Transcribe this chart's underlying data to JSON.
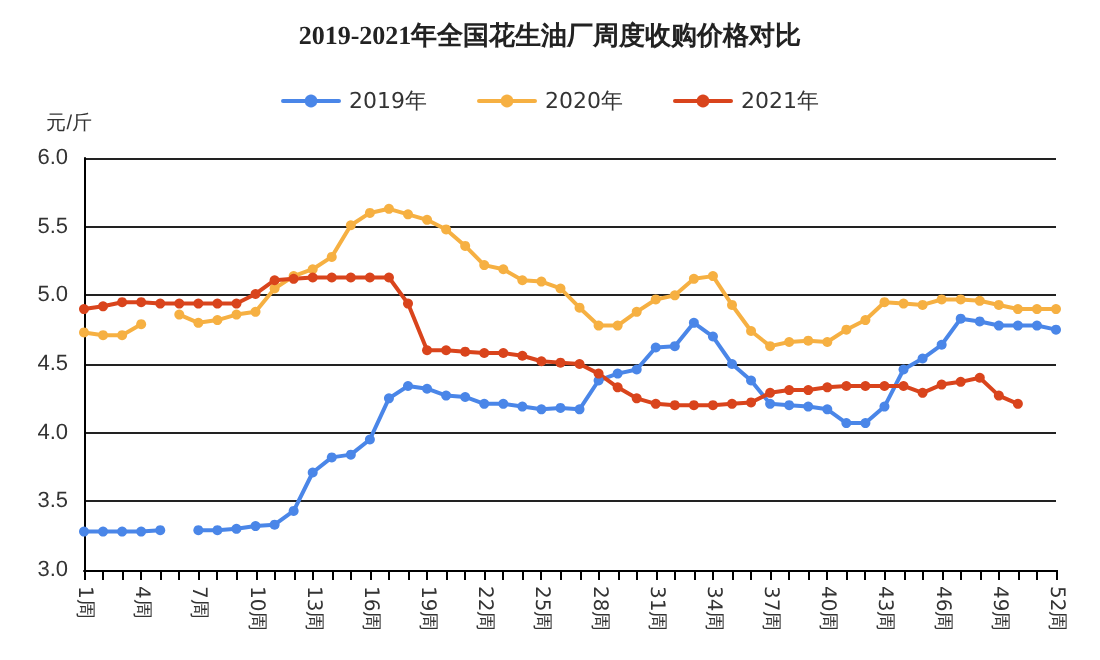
{
  "chart_data": {
    "type": "line",
    "title": "2019-2021年全国花生油厂周度收购价格对比",
    "ylabel": "元/斤",
    "categories": [
      "1周",
      null,
      null,
      "4周",
      null,
      null,
      "7周",
      null,
      null,
      "10周",
      null,
      null,
      "13周",
      null,
      null,
      "16周",
      null,
      null,
      "19周",
      null,
      null,
      "22周",
      null,
      null,
      "25周",
      null,
      null,
      "28周",
      null,
      null,
      "31周",
      null,
      null,
      "34周",
      null,
      null,
      "37周",
      null,
      null,
      "40周",
      null,
      null,
      "43周",
      null,
      null,
      "46周",
      null,
      null,
      "49周",
      null,
      null,
      "52周"
    ],
    "series": [
      {
        "name": "2019年",
        "color": "#4a86e8",
        "values": [
          3.28,
          3.28,
          3.28,
          3.28,
          3.29,
          null,
          3.29,
          3.29,
          3.3,
          3.32,
          3.33,
          3.43,
          3.71,
          3.82,
          3.84,
          3.95,
          4.25,
          4.34,
          4.32,
          4.27,
          4.26,
          4.21,
          4.21,
          4.19,
          4.17,
          4.18,
          4.17,
          4.38,
          4.43,
          4.46,
          4.62,
          4.63,
          4.8,
          4.7,
          4.5,
          4.38,
          4.21,
          4.2,
          4.19,
          4.17,
          4.07,
          4.07,
          4.19,
          4.46,
          4.54,
          4.64,
          4.83,
          4.81,
          4.78,
          4.78,
          4.78,
          4.75
        ]
      },
      {
        "name": "2020年",
        "color": "#f6b042",
        "values": [
          4.73,
          4.71,
          4.71,
          4.79,
          null,
          4.86,
          4.8,
          4.82,
          4.86,
          4.88,
          5.05,
          5.14,
          5.19,
          5.28,
          5.51,
          5.6,
          5.63,
          5.59,
          5.55,
          5.48,
          5.36,
          5.22,
          5.19,
          5.11,
          5.1,
          5.05,
          4.91,
          4.78,
          4.78,
          4.88,
          4.97,
          5.0,
          5.12,
          5.14,
          4.93,
          4.74,
          4.63,
          4.66,
          4.67,
          4.66,
          4.75,
          4.82,
          4.95,
          4.94,
          4.93,
          4.97,
          4.97,
          4.96,
          4.93,
          4.9,
          4.9,
          4.9
        ]
      },
      {
        "name": "2021年",
        "color": "#d9441c",
        "values": [
          4.9,
          4.92,
          4.95,
          4.95,
          4.94,
          4.94,
          4.94,
          4.94,
          4.94,
          5.01,
          5.11,
          5.12,
          5.13,
          5.13,
          5.13,
          5.13,
          5.13,
          4.94,
          4.6,
          4.6,
          4.59,
          4.58,
          4.58,
          4.56,
          4.52,
          4.51,
          4.5,
          4.43,
          4.33,
          4.25,
          4.21,
          4.2,
          4.2,
          4.2,
          4.21,
          4.22,
          4.29,
          4.31,
          4.31,
          4.33,
          4.34,
          4.34,
          4.34,
          4.34,
          4.29,
          4.35,
          4.37,
          4.4,
          4.27,
          4.21,
          null,
          null
        ]
      }
    ],
    "ylim": [
      3.0,
      6.0
    ],
    "yticks": [
      {
        "value": 3,
        "label": "3.0"
      },
      3.5,
      {
        "value": 4,
        "label": "4.0"
      },
      4.5,
      {
        "value": 5,
        "label": "5.0"
      },
      5.5,
      {
        "value": 6,
        "label": "6.0"
      }
    ],
    "grid": "y",
    "legend": "top",
    "marker": "circle",
    "line_style": "solid"
  }
}
